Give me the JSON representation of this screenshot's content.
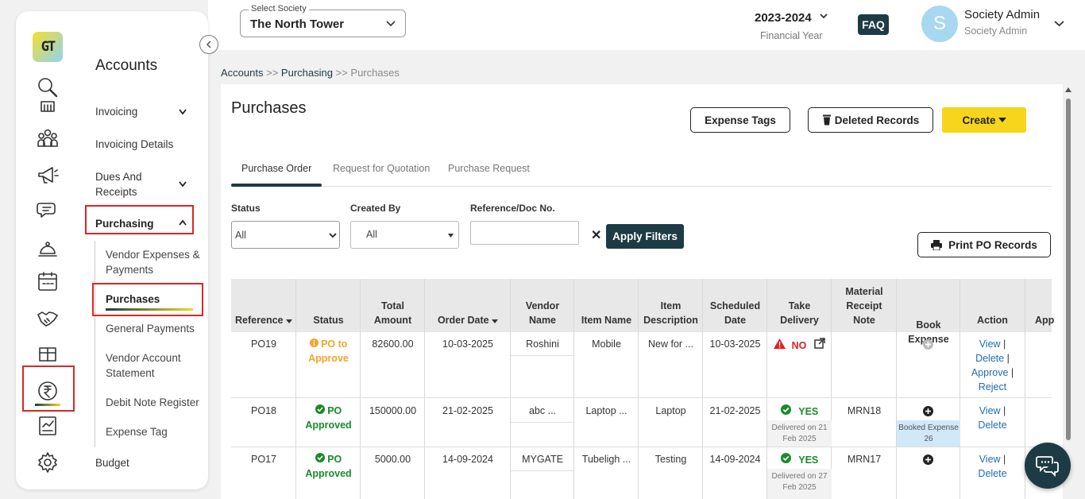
{
  "topbar": {
    "society_label": "Select Society",
    "society_value": "The North Tower",
    "financial_year": "2023-2024",
    "financial_year_label": "Financial Year",
    "faq": "FAQ",
    "avatar_letter": "S",
    "user_name": "Society Admin",
    "user_role": "Society Admin"
  },
  "sidebar": {
    "title": "Accounts",
    "items": {
      "invoicing": "Invoicing",
      "invoicing_details": "Invoicing Details",
      "dues_and": "Dues And",
      "receipts": "Receipts",
      "purchasing": "Purchasing",
      "vendor_expenses_1": "Vendor Expenses &",
      "vendor_expenses_2": "Payments",
      "purchases": "Purchases",
      "general_payments": "General Payments",
      "vendor_account_1": "Vendor Account",
      "vendor_account_2": "Statement",
      "debit_note": "Debit Note Register",
      "expense_tag": "Expense Tag",
      "budget": "Budget"
    }
  },
  "breadcrumb": {
    "accounts": "Accounts",
    "sep": ">>",
    "purchasing": "Purchasing",
    "purchases": "Purchases"
  },
  "page": {
    "title": "Purchases",
    "expense_tags": "Expense Tags",
    "deleted_records": "Deleted Records",
    "create": "Create"
  },
  "tabs": {
    "po": "Purchase Order",
    "rfq": "Request for Quotation",
    "pr": "Purchase Request"
  },
  "filters": {
    "status_label": "Status",
    "status_value": "All",
    "created_by_label": "Created By",
    "created_by_value": "All",
    "ref_label": "Reference/Doc No.",
    "clear": "✕",
    "apply": "Apply Filters",
    "print": "Print PO Records"
  },
  "table": {
    "headers": {
      "reference": "Reference",
      "status": "Status",
      "total_1": "Total",
      "total_2": "Amount",
      "order_date": "Order Date",
      "vendor_1": "Vendor",
      "vendor_2": "Name",
      "item_name": "Item Name",
      "desc_1": "Item",
      "desc_2": "Description",
      "sched_1": "Scheduled",
      "sched_2": "Date",
      "take_1": "Take",
      "take_2": "Delivery",
      "mrn_1": "Material",
      "mrn_2": "Receipt",
      "mrn_3": "Note",
      "book": "Book Expense",
      "action": "Action",
      "app": "App"
    },
    "rows": [
      {
        "ref": "PO19",
        "status_1": "PO to",
        "status_2": "Approve",
        "amount": "82600.00",
        "date": "10-03-2025",
        "vendor": "Roshini",
        "item": "Mobile",
        "desc": "New for ...",
        "sched": "10-03-2025",
        "delivery": "NO",
        "delivered_on": "",
        "mrn": "",
        "view": "View",
        "delete": "Delete",
        "approve": "Approve",
        "reject": "Reject"
      },
      {
        "ref": "PO18",
        "status_1": "PO",
        "status_2": "Approved",
        "amount": "150000.00",
        "date": "21-02-2025",
        "vendor": "abc ...",
        "item": "Laptop ...",
        "desc": "Laptop",
        "sched": "21-02-2025",
        "delivery": "YES",
        "delivered_on_1": "Delivered on 21",
        "delivered_on_2": "Feb 2025",
        "mrn": "MRN18",
        "booked_1": "Booked Expense",
        "booked_2": "26",
        "view": "View",
        "delete": "Delete"
      },
      {
        "ref": "PO17",
        "status_1": "PO",
        "status_2": "Approved",
        "amount": "5000.00",
        "date": "14-09-2024",
        "vendor": "MYGATE",
        "item": "Tubeligh ...",
        "desc": "Testing",
        "sched": "14-09-2024",
        "delivery": "YES",
        "delivered_on_1": "Delivered on 27",
        "delivered_on_2": "Feb 2025",
        "mrn": "MRN17",
        "view": "View",
        "delete": "Delete"
      }
    ]
  },
  "colors": {
    "primary": "#1d3b44",
    "accent": "#f7d51d",
    "highlight": "#d62828",
    "success": "#1a8a2a",
    "warning": "#f2a42a",
    "danger": "#e02020",
    "link": "#1e6db5"
  }
}
